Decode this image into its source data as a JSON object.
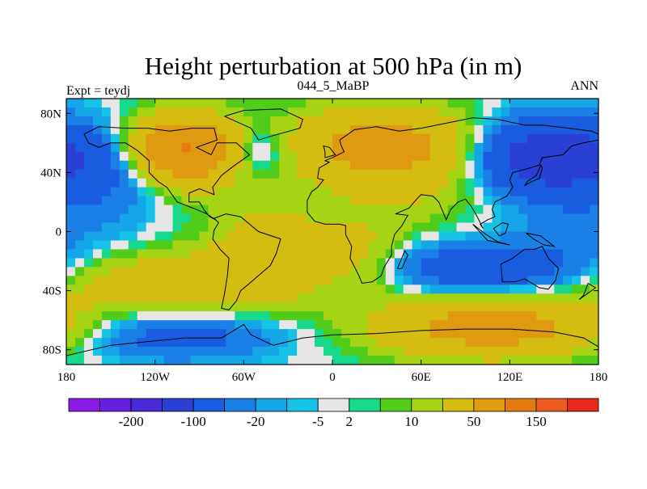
{
  "chart_data": {
    "type": "heatmap",
    "title": "Height perturbation at 500 hPa (in m)",
    "left_string": "Expt = teydj",
    "center_string": "044_5_MaBP",
    "right_string": "ANN",
    "x_range": [
      -180,
      180
    ],
    "y_range": [
      -90,
      90
    ],
    "x_ticks": [
      {
        "value": -180,
        "label": "180"
      },
      {
        "value": -120,
        "label": "120W"
      },
      {
        "value": -60,
        "label": "60W"
      },
      {
        "value": 0,
        "label": "0"
      },
      {
        "value": 60,
        "label": "60E"
      },
      {
        "value": 120,
        "label": "120E"
      },
      {
        "value": 180,
        "label": "180"
      }
    ],
    "y_ticks": [
      {
        "value": 80,
        "label": "80N"
      },
      {
        "value": 40,
        "label": "40N"
      },
      {
        "value": 0,
        "label": "0"
      },
      {
        "value": -40,
        "label": "40S"
      },
      {
        "value": -80,
        "label": "80S"
      }
    ],
    "colorbar": {
      "colors": [
        "#8a1ae6",
        "#6a1ee0",
        "#4a2ad8",
        "#2a40d4",
        "#1a5ce0",
        "#1a80e6",
        "#14a6e6",
        "#16c3e6",
        "#e6e6e6",
        "#18d88c",
        "#52cc1a",
        "#a6d414",
        "#d4bc10",
        "#e09a12",
        "#e47a10",
        "#ec5a1e",
        "#e8281a"
      ],
      "tick_labels": [
        {
          "after_index": 1,
          "label": "-200"
        },
        {
          "after_index": 3,
          "label": "-100"
        },
        {
          "after_index": 5,
          "label": "-20"
        },
        {
          "after_index": 7,
          "label": "-5"
        },
        {
          "after_index": 8,
          "label": "2"
        },
        {
          "after_index": 10,
          "label": "10"
        },
        {
          "after_index": 12,
          "label": "50"
        },
        {
          "after_index": 14,
          "label": "150"
        }
      ]
    },
    "field_levels": [
      -200,
      -150,
      -100,
      -50,
      -20,
      -10,
      -5,
      -2,
      2,
      5,
      10,
      20,
      50,
      100,
      150,
      200
    ],
    "field_features": [
      {
        "lon": -145,
        "lat": 45,
        "amp": -30,
        "slon": 28,
        "slat": 18
      },
      {
        "lon": -100,
        "lat": 55,
        "amp": 110,
        "slon": 28,
        "slat": 16
      },
      {
        "lon": -55,
        "lat": 55,
        "amp": -35,
        "slon": 18,
        "slat": 12
      },
      {
        "lon": 35,
        "lat": 58,
        "amp": 70,
        "slon": 45,
        "slat": 18
      },
      {
        "lon": 145,
        "lat": 50,
        "amp": -80,
        "slon": 35,
        "slat": 18
      },
      {
        "lon": 60,
        "lat": 25,
        "amp": 12,
        "slon": 45,
        "slat": 15
      },
      {
        "lon": -20,
        "lat": 5,
        "amp": 8,
        "slon": 60,
        "slat": 16
      },
      {
        "lon": -105,
        "lat": -35,
        "amp": 45,
        "slon": 55,
        "slat": 14
      },
      {
        "lon": -45,
        "lat": -15,
        "amp": 30,
        "slon": 25,
        "slat": 20
      },
      {
        "lon": 20,
        "lat": -20,
        "amp": 25,
        "slon": 22,
        "slat": 18
      },
      {
        "lon": 105,
        "lat": -25,
        "amp": -40,
        "slon": 55,
        "slat": 12
      },
      {
        "lon": -110,
        "lat": -70,
        "amp": -30,
        "slon": 50,
        "slat": 12
      },
      {
        "lon": 110,
        "lat": -65,
        "amp": 70,
        "slon": 55,
        "slat": 14
      },
      {
        "lon": 175,
        "lat": 5,
        "amp": -12,
        "slon": 40,
        "slat": 15
      }
    ],
    "coastlines": [
      {
        "name": "north-america",
        "points": [
          [
            -168,
            66
          ],
          [
            -158,
            71
          ],
          [
            -140,
            70
          ],
          [
            -125,
            70
          ],
          [
            -110,
            68
          ],
          [
            -95,
            70
          ],
          [
            -80,
            70
          ],
          [
            -78,
            62
          ],
          [
            -92,
            57
          ],
          [
            -82,
            52
          ],
          [
            -78,
            60
          ],
          [
            -65,
            60
          ],
          [
            -56,
            52
          ],
          [
            -66,
            45
          ],
          [
            -75,
            38
          ],
          [
            -81,
            30
          ],
          [
            -80,
            25
          ],
          [
            -90,
            29
          ],
          [
            -97,
            26
          ],
          [
            -97,
            20
          ],
          [
            -90,
            20
          ],
          [
            -87,
            15
          ],
          [
            -83,
            10
          ],
          [
            -79,
            8
          ],
          [
            -85,
            12
          ],
          [
            -92,
            15
          ],
          [
            -105,
            20
          ],
          [
            -112,
            30
          ],
          [
            -118,
            34
          ],
          [
            -124,
            40
          ],
          [
            -124,
            48
          ],
          [
            -132,
            55
          ],
          [
            -140,
            60
          ],
          [
            -150,
            60
          ],
          [
            -158,
            57
          ],
          [
            -165,
            60
          ],
          [
            -168,
            66
          ]
        ]
      },
      {
        "name": "greenland",
        "points": [
          [
            -73,
            78
          ],
          [
            -60,
            82
          ],
          [
            -35,
            83
          ],
          [
            -20,
            76
          ],
          [
            -22,
            70
          ],
          [
            -40,
            65
          ],
          [
            -50,
            62
          ],
          [
            -55,
            70
          ],
          [
            -73,
            78
          ]
        ]
      },
      {
        "name": "south-america",
        "points": [
          [
            -80,
            9
          ],
          [
            -72,
            12
          ],
          [
            -62,
            10
          ],
          [
            -50,
            0
          ],
          [
            -35,
            -5
          ],
          [
            -38,
            -15
          ],
          [
            -42,
            -23
          ],
          [
            -48,
            -28
          ],
          [
            -56,
            -35
          ],
          [
            -62,
            -40
          ],
          [
            -65,
            -47
          ],
          [
            -70,
            -53
          ],
          [
            -75,
            -52
          ],
          [
            -73,
            -42
          ],
          [
            -71,
            -30
          ],
          [
            -70,
            -18
          ],
          [
            -76,
            -12
          ],
          [
            -81,
            -5
          ],
          [
            -80,
            1
          ],
          [
            -77,
            6
          ],
          [
            -80,
            9
          ]
        ]
      },
      {
        "name": "eurasia-africa",
        "points": [
          [
            -10,
            36
          ],
          [
            -9,
            43
          ],
          [
            -2,
            47
          ],
          [
            -5,
            48
          ],
          [
            0,
            50
          ],
          [
            8,
            54
          ],
          [
            6,
            58
          ],
          [
            5,
            62
          ],
          [
            15,
            69
          ],
          [
            30,
            71
          ],
          [
            45,
            68
          ],
          [
            60,
            70
          ],
          [
            75,
            73
          ],
          [
            95,
            77
          ],
          [
            112,
            76
          ],
          [
            130,
            72
          ],
          [
            142,
            72
          ],
          [
            160,
            70
          ],
          [
            175,
            68
          ],
          [
            180,
            66
          ],
          [
            180,
            62
          ],
          [
            170,
            60
          ],
          [
            162,
            58
          ],
          [
            156,
            52
          ],
          [
            142,
            50
          ],
          [
            140,
            45
          ],
          [
            130,
            42
          ],
          [
            122,
            40
          ],
          [
            120,
            35
          ],
          [
            122,
            30
          ],
          [
            118,
            24
          ],
          [
            110,
            20
          ],
          [
            108,
            15
          ],
          [
            110,
            10
          ],
          [
            105,
            8
          ],
          [
            100,
            5
          ],
          [
            102,
            2
          ],
          [
            98,
            10
          ],
          [
            94,
            17
          ],
          [
            90,
            22
          ],
          [
            85,
            20
          ],
          [
            80,
            15
          ],
          [
            77,
            8
          ],
          [
            72,
            20
          ],
          [
            68,
            24
          ],
          [
            60,
            25
          ],
          [
            57,
            22
          ],
          [
            52,
            16
          ],
          [
            45,
            13
          ],
          [
            43,
            12
          ],
          [
            51,
            11
          ],
          [
            47,
            4
          ],
          [
            42,
            -2
          ],
          [
            40,
            -10
          ],
          [
            40,
            -16
          ],
          [
            35,
            -24
          ],
          [
            33,
            -30
          ],
          [
            27,
            -34
          ],
          [
            20,
            -35
          ],
          [
            18,
            -30
          ],
          [
            12,
            -18
          ],
          [
            13,
            -10
          ],
          [
            9,
            -2
          ],
          [
            9,
            4
          ],
          [
            5,
            5
          ],
          [
            -5,
            5
          ],
          [
            -12,
            7
          ],
          [
            -17,
            13
          ],
          [
            -17,
            21
          ],
          [
            -14,
            27
          ],
          [
            -10,
            30
          ],
          [
            -6,
            35
          ],
          [
            -10,
            36
          ]
        ]
      },
      {
        "name": "australia",
        "points": [
          [
            114,
            -22
          ],
          [
            122,
            -18
          ],
          [
            130,
            -12
          ],
          [
            137,
            -12
          ],
          [
            142,
            -10
          ],
          [
            146,
            -18
          ],
          [
            153,
            -25
          ],
          [
            151,
            -33
          ],
          [
            146,
            -39
          ],
          [
            140,
            -38
          ],
          [
            135,
            -35
          ],
          [
            130,
            -32
          ],
          [
            124,
            -34
          ],
          [
            115,
            -34
          ],
          [
            114,
            -22
          ]
        ]
      },
      {
        "name": "antarctica",
        "points": [
          [
            -180,
            -84
          ],
          [
            -150,
            -77
          ],
          [
            -120,
            -74
          ],
          [
            -100,
            -72
          ],
          [
            -75,
            -72
          ],
          [
            -60,
            -63
          ],
          [
            -55,
            -70
          ],
          [
            -40,
            -77
          ],
          [
            -20,
            -72
          ],
          [
            0,
            -70
          ],
          [
            30,
            -69
          ],
          [
            60,
            -67
          ],
          [
            90,
            -66
          ],
          [
            120,
            -66
          ],
          [
            150,
            -68
          ],
          [
            170,
            -72
          ],
          [
            180,
            -78
          ]
        ]
      },
      {
        "name": "madagascar",
        "points": [
          [
            44,
            -25
          ],
          [
            49,
            -13
          ],
          [
            51,
            -16
          ],
          [
            47,
            -25
          ],
          [
            44,
            -25
          ]
        ]
      },
      {
        "name": "new-zealand",
        "points": [
          [
            167,
            -46
          ],
          [
            174,
            -41
          ],
          [
            178,
            -38
          ],
          [
            173,
            -35
          ],
          [
            170,
            -43
          ],
          [
            167,
            -46
          ]
        ]
      },
      {
        "name": "uk",
        "points": [
          [
            -5,
            50
          ],
          [
            2,
            52
          ],
          [
            -2,
            57
          ],
          [
            -6,
            58
          ],
          [
            -5,
            54
          ],
          [
            -5,
            50
          ]
        ]
      },
      {
        "name": "japan",
        "points": [
          [
            130,
            31
          ],
          [
            135,
            34
          ],
          [
            140,
            36
          ],
          [
            142,
            43
          ],
          [
            141,
            45
          ],
          [
            138,
            38
          ],
          [
            132,
            34
          ],
          [
            130,
            31
          ]
        ]
      },
      {
        "name": "indonesia",
        "points": [
          [
            95,
            5
          ],
          [
            105,
            -6
          ],
          [
            115,
            -8
          ],
          [
            120,
            -9
          ],
          [
            112,
            -7
          ],
          [
            104,
            -2
          ],
          [
            95,
            5
          ]
        ]
      },
      {
        "name": "borneo",
        "points": [
          [
            109,
            2
          ],
          [
            115,
            6
          ],
          [
            119,
            5
          ],
          [
            117,
            -1
          ],
          [
            113,
            -3
          ],
          [
            109,
            2
          ]
        ]
      },
      {
        "name": "new-guinea",
        "points": [
          [
            131,
            -1
          ],
          [
            141,
            -3
          ],
          [
            150,
            -10
          ],
          [
            143,
            -9
          ],
          [
            136,
            -5
          ],
          [
            131,
            -1
          ]
        ]
      }
    ]
  }
}
